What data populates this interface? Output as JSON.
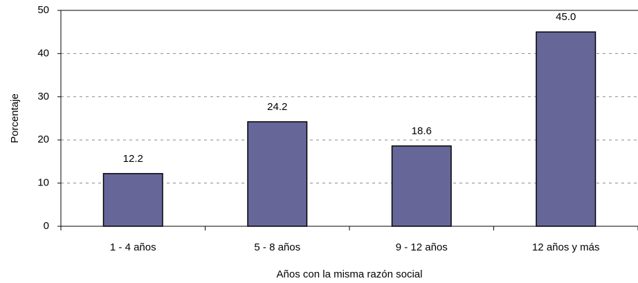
{
  "chart_data": {
    "type": "bar",
    "categories": [
      "1 - 4 años",
      "5 - 8 años",
      "9 - 12 años",
      "12 años y más"
    ],
    "values": [
      12.2,
      24.2,
      18.6,
      45.0
    ],
    "value_labels": [
      "12.2",
      "24.2",
      "18.6",
      "45.0"
    ],
    "color": "#666699",
    "xlabel": "Años con la misma razón social",
    "ylabel": "Porcentaje",
    "ylim": [
      0,
      50
    ],
    "yticks": [
      0,
      10,
      20,
      30,
      40,
      50
    ],
    "grid": true
  }
}
